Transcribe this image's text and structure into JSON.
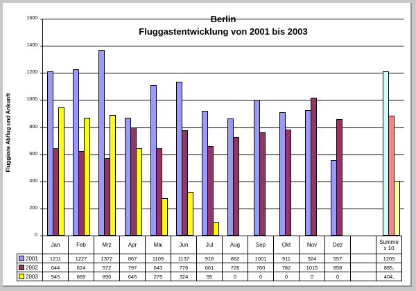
{
  "chart_data": {
    "type": "bar",
    "title": "Berlin",
    "subtitle": "Fluggastentwicklung von 2001 bis 2003",
    "xlabel": "",
    "ylabel": "Fluggäste Abflug und Ankunft",
    "ylim": [
      0,
      1600
    ],
    "yticks": [
      0,
      200,
      400,
      600,
      800,
      1000,
      1200,
      1400,
      1600
    ],
    "grid": true,
    "legend_position": "data-table-left",
    "categories": [
      "Jan",
      "Feb",
      "Mrz",
      "Apr",
      "Mai",
      "Jun",
      "Jul",
      "Aug",
      "Sep",
      "Okt",
      "Nov",
      "Dez",
      "",
      "Summe x10"
    ],
    "series": [
      {
        "name": "2001",
        "color": "#9999ff",
        "values": [
          1211,
          1227,
          1372,
          867,
          1109,
          1137,
          918,
          862,
          1001,
          911,
          924,
          557,
          null,
          1209
        ],
        "labels": [
          "1211",
          "1227",
          "1372",
          "867",
          "1109",
          "1137",
          "918",
          "862",
          "1001",
          "911",
          "924",
          "557",
          "",
          "1209"
        ]
      },
      {
        "name": "2002",
        "color": "#993366",
        "values": [
          644,
          624,
          572,
          797,
          643,
          776,
          661,
          726,
          760,
          782,
          1015,
          858,
          null,
          885
        ],
        "labels": [
          "644",
          "624",
          "572",
          "797",
          "643",
          "776",
          "661",
          "726",
          "760",
          "782",
          "1015",
          "858",
          "",
          "885,"
        ]
      },
      {
        "name": "2003",
        "color": "#ffff00",
        "values": [
          945,
          869,
          890,
          645,
          275,
          324,
          95,
          0,
          0,
          0,
          0,
          0,
          null,
          404
        ],
        "labels": [
          "945",
          "869",
          "890",
          "645",
          "275",
          "324",
          "95",
          "0",
          "0",
          "0",
          "0",
          "0",
          "",
          "404,"
        ]
      }
    ],
    "summe_colors": [
      "#ccffff",
      "#ff8080",
      "#ffff99"
    ]
  },
  "title": {
    "line1": "Berlin",
    "line2": "Fluggastentwicklung von 2001 bis 2003"
  },
  "axis": {
    "ylabel": "Fluggäste Abflug und Ankunft"
  },
  "table": {
    "summe_line1": "Summe",
    "summe_line2": "x 10"
  }
}
